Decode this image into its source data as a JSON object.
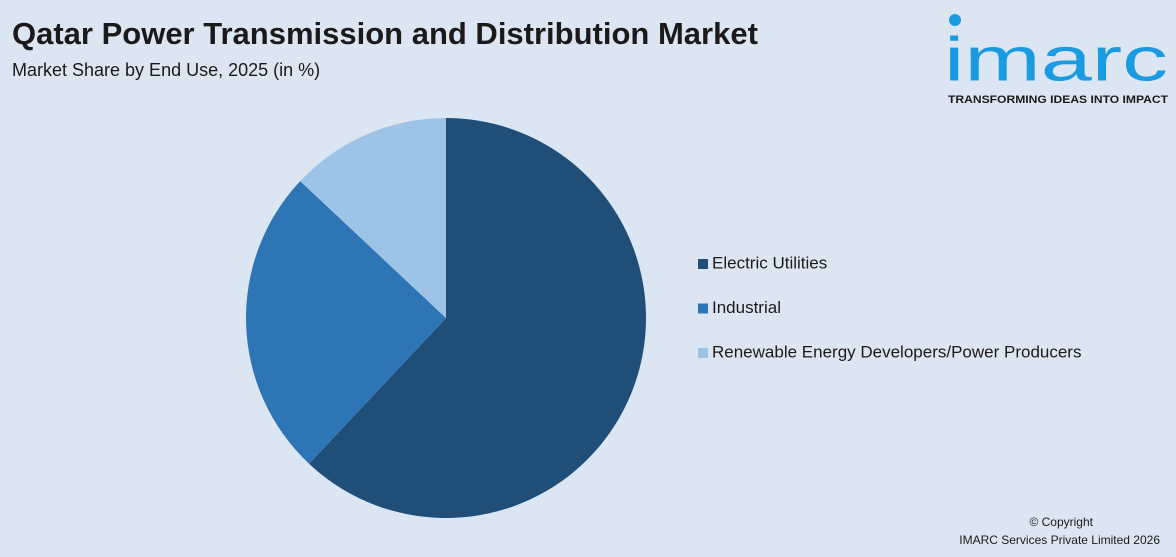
{
  "chart_data": {
    "type": "pie",
    "title": "Qatar Power Transmission and Distribution Market",
    "subtitle": "Market Share by End Use, 2025 (in %)",
    "categories": [
      "Electric Utilities",
      "Industrial",
      "Renewable Energy Developers/Power Producers"
    ],
    "values": [
      62,
      25,
      13
    ],
    "colors": [
      "#1f4e79",
      "#2e75b6",
      "#9dc3e6"
    ],
    "legend": "right"
  },
  "logo": {
    "name": "imarc",
    "tagline": "TRANSFORMING IDEAS INTO IMPACT"
  },
  "footer": {
    "copyright": "© Copyright",
    "owner": "IMARC Services Private Limited 2026"
  }
}
